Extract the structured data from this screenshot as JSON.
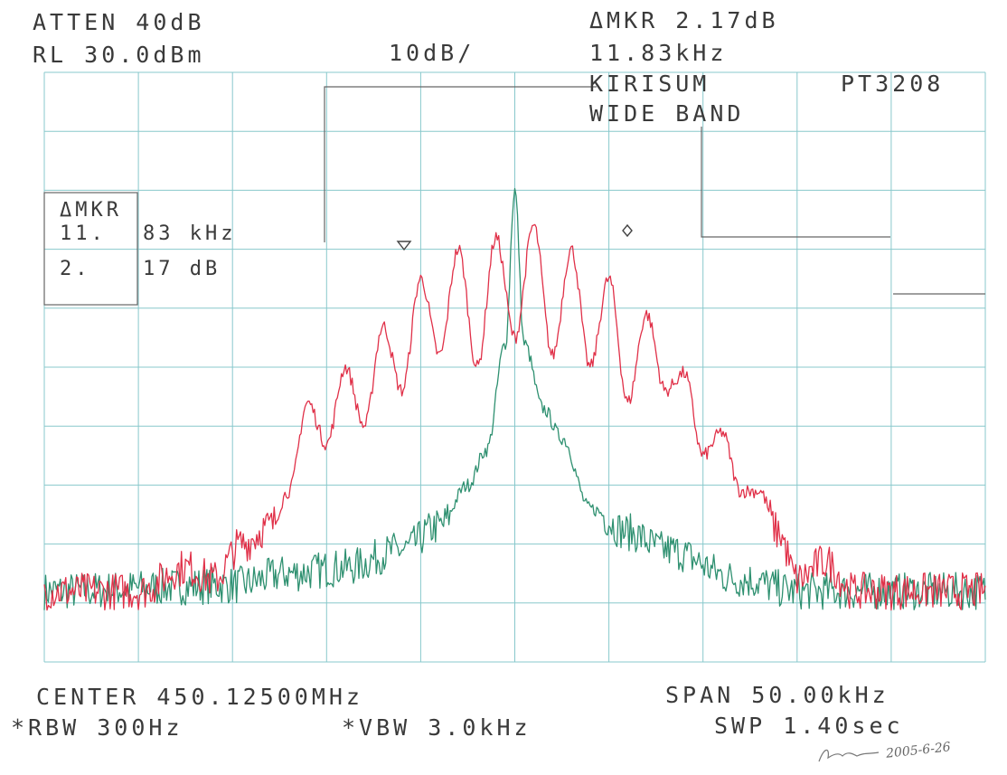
{
  "header": {
    "atten": "ATTEN 40dB",
    "rl": "RL 30.0dBm",
    "scale": "10dB/",
    "delta_mkr_level": "ΔMKR 2.17dB",
    "delta_mkr_freq": "11.83kHz",
    "model": "KIRISUM",
    "model_code": "PT3208",
    "band": "WIDE BAND"
  },
  "marker_box": {
    "title": "ΔMKR",
    "freq_prefix": "11.",
    "freq_suffix": "83 kHz",
    "level_prefix": "2.",
    "level_suffix": "17 dB"
  },
  "footer": {
    "center": "CENTER 450.12500MHz",
    "span": "SPAN 50.00kHz",
    "rbw": "*RBW 300Hz",
    "vbw": "*VBW 3.0kHz",
    "sweep": "SWP 1.40sec"
  },
  "signature": "2005-6-26",
  "colors": {
    "grid": "#88c8cc",
    "red_trace": "#e03048",
    "green_trace": "#2e9070",
    "text": "#3a3a3a"
  },
  "chart_data": {
    "type": "line",
    "title": "",
    "xlabel": "",
    "ylabel": "",
    "x_unit": "kHz offset from center 450.12500MHz",
    "xlim": [
      -25,
      25
    ],
    "ylim": [
      -70,
      30
    ],
    "grid": true,
    "series": [
      {
        "color": "red",
        "x": [
          -25.0,
          -20.0,
          -17.5,
          -16.0,
          -14.5,
          -13.0,
          -12.0,
          -11.0,
          -10.0,
          -9.0,
          -8.0,
          -7.0,
          -6.0,
          -5.0,
          -4.0,
          -3.0,
          -2.0,
          -1.0,
          0.0,
          1.0,
          2.0,
          3.0,
          4.0,
          5.0,
          6.0,
          7.0,
          8.0,
          9.0,
          10.0,
          11.0,
          12.0,
          13.0,
          14.0,
          15.0,
          16.5,
          18.0,
          25.0
        ],
        "y": [
          -58,
          -58,
          -54,
          -56,
          -50,
          -47,
          -41,
          -26,
          -33,
          -20,
          -30,
          -13,
          -24,
          -5,
          -18,
          0,
          -20,
          2,
          -15,
          4,
          -18,
          0,
          -20,
          -5,
          -26,
          -11,
          -24,
          -21,
          -35,
          -31,
          -41,
          -41,
          -48,
          -56,
          -53,
          -58,
          -58
        ]
      },
      {
        "color": "green",
        "x": [
          -25.0,
          -15.0,
          -12.0,
          -9.0,
          -6.0,
          -4.0,
          -2.5,
          -1.5,
          -0.5,
          0.0,
          0.5,
          1.5,
          2.5,
          4.0,
          6.0,
          8.0,
          12.0,
          15.0,
          25.0
        ],
        "y": [
          -58,
          -57,
          -55,
          -54,
          -51,
          -47,
          -40,
          -34,
          -16,
          10,
          -16,
          -27,
          -32,
          -44,
          -48,
          -51,
          -56,
          -58,
          -58
        ]
      }
    ]
  }
}
